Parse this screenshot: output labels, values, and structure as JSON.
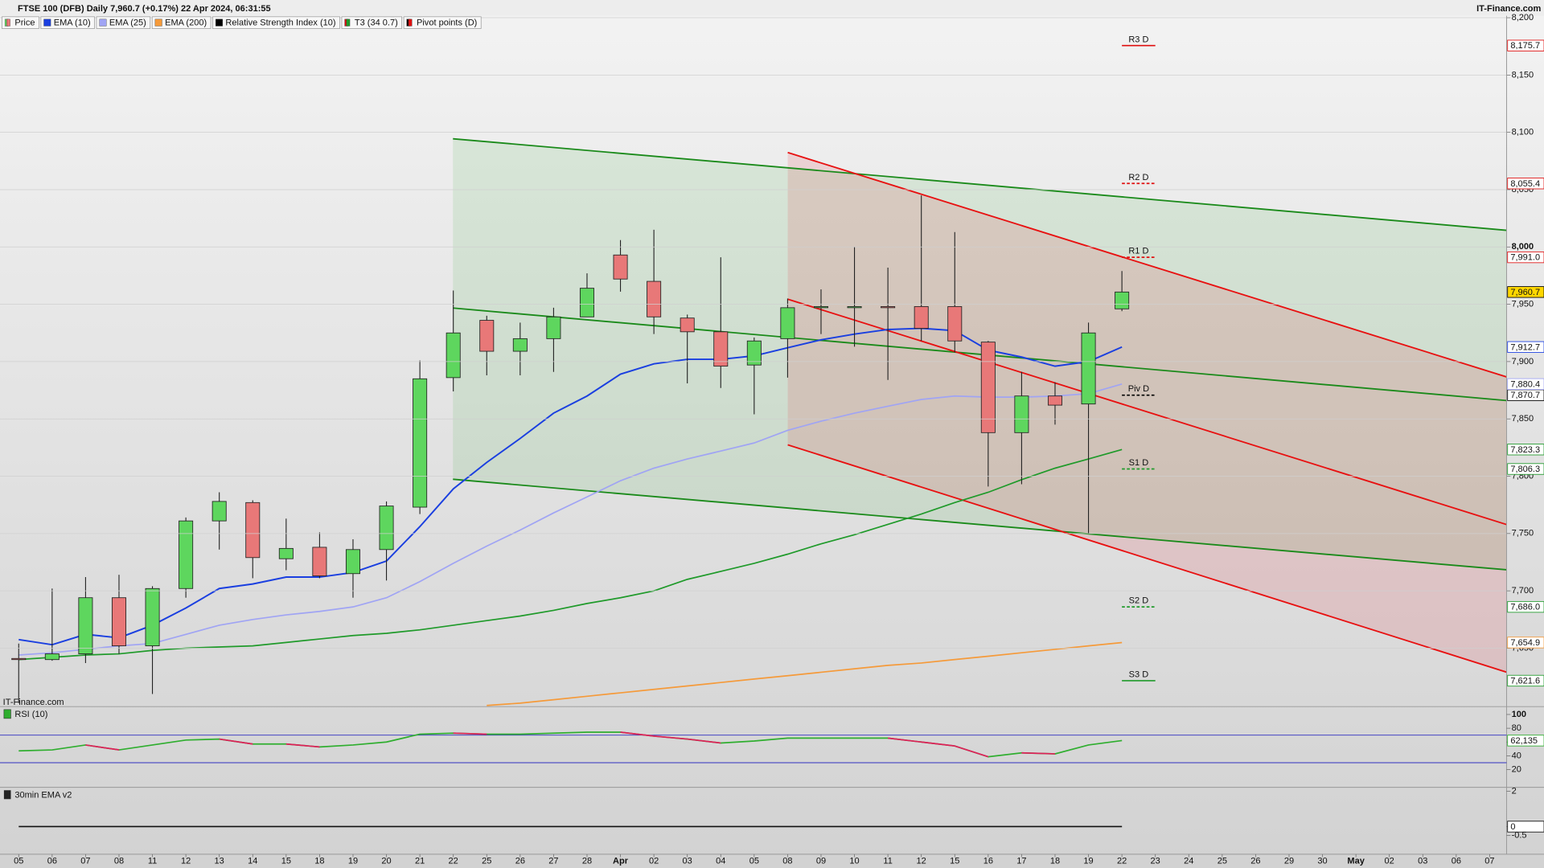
{
  "header": {
    "title": "FTSE 100 (DFB) Daily 7,960.7 (+0.17%) 22 Apr 2024, 06:31:55",
    "source": "IT-Finance.com"
  },
  "chart_data": [
    {
      "type": "candlestick",
      "price_name": "Price",
      "pivot_name": "Pivot points (D)",
      "pivot_color": "#000000",
      "watermark": "IT-Finance.com",
      "up_color": "#5ed65e",
      "down_color": "#e87878",
      "last_label": "7,960.7",
      "last_fill": "#ffd700",
      "categories": [
        "05",
        "06",
        "07",
        "08",
        "11",
        "12",
        "13",
        "14",
        "15",
        "18",
        "19",
        "20",
        "21",
        "22",
        "25",
        "26",
        "27",
        "28",
        "Apr",
        "02",
        "03",
        "04",
        "05",
        "08",
        "09",
        "10",
        "11",
        "12",
        "15",
        "16",
        "17",
        "18",
        "19",
        "22",
        "23",
        "24",
        "25",
        "26",
        "29",
        "30",
        "May",
        "02",
        "03",
        "06",
        "07"
      ],
      "open": [
        7641,
        7640,
        7645,
        7694,
        7652,
        7702,
        7761,
        7777,
        7728,
        7738,
        7715,
        7736,
        7773,
        7886,
        7936,
        7909,
        7920,
        7939,
        7993,
        7970,
        7938,
        7926,
        7897,
        7920,
        7947,
        7947,
        7948,
        7948,
        7948,
        7917,
        7838,
        7870,
        7863,
        7946,
        null,
        null,
        null,
        null,
        null,
        null,
        null,
        null,
        null,
        null,
        null
      ],
      "high": [
        7654,
        7702,
        7712,
        7714,
        7704,
        7764,
        7786,
        7779,
        7763,
        7751,
        7745,
        7778,
        7901,
        7962,
        7940,
        7934,
        7947,
        7977,
        8006,
        8015,
        7941,
        7991,
        7921,
        7955,
        7963,
        8000,
        7982,
        8045,
        8013,
        7918,
        7891,
        7882,
        7934,
        7979,
        null,
        null,
        null,
        null,
        null,
        null,
        null,
        null,
        null,
        null,
        null
      ],
      "low": [
        7602,
        7639,
        7637,
        7645,
        7610,
        7694,
        7736,
        7711,
        7718,
        7711,
        7694,
        7709,
        7767,
        7874,
        7888,
        7888,
        7891,
        7939,
        7961,
        7924,
        7881,
        7877,
        7854,
        7886,
        7924,
        7913,
        7884,
        7918,
        7908,
        7791,
        7793,
        7845,
        7750,
        7944,
        null,
        null,
        null,
        null,
        null,
        null,
        null,
        null,
        null,
        null,
        null
      ],
      "close": [
        7640,
        7645,
        7694,
        7652,
        7702,
        7761,
        7778,
        7729,
        7737,
        7713,
        7736,
        7774,
        7885,
        7925,
        7909,
        7920,
        7939,
        7964,
        7972,
        7939,
        7926,
        7896,
        7918,
        7947,
        7948,
        7948,
        7947,
        7929,
        7918,
        7838,
        7870,
        7862,
        7925,
        7960.7,
        null,
        null,
        null,
        null,
        null,
        null,
        null,
        null,
        null,
        null,
        null
      ],
      "series": [
        {
          "name": "EMA (10)",
          "color": "#1a3fe0",
          "last_label": "7,912.7",
          "values": [
            7657.5,
            7653,
            7662,
            7659,
            7670,
            7685,
            7702,
            7706,
            7712,
            7712,
            7716,
            7726,
            7756,
            7789,
            7812,
            7833,
            7855,
            7870,
            7889,
            7898,
            7902,
            7902,
            7905,
            7912,
            7919,
            7924,
            7928,
            7929,
            7927,
            7910,
            7904,
            7896,
            7900,
            7912.7,
            null,
            null,
            null,
            null,
            null,
            null,
            null,
            null,
            null,
            null,
            null
          ]
        },
        {
          "name": "EMA (25)",
          "color": "#a0a4f4",
          "last_label": "7,880.4",
          "values": [
            7644,
            7646,
            7649,
            7652,
            7654,
            7662,
            7670,
            7675,
            7679,
            7682,
            7686,
            7694,
            7708,
            7724,
            7739,
            7753,
            7768,
            7782,
            7796,
            7807,
            7815,
            7822,
            7829,
            7840,
            7848,
            7855,
            7861,
            7867,
            7870,
            7869,
            7869,
            7870,
            7872,
            7880.4,
            null,
            null,
            null,
            null,
            null,
            null,
            null,
            null,
            null,
            null,
            null
          ]
        },
        {
          "name": "EMA (200)",
          "color": "#f59a3a",
          "last_label": "7,654.9",
          "values": [
            null,
            null,
            null,
            null,
            null,
            null,
            null,
            null,
            null,
            null,
            null,
            null,
            null,
            null,
            7600,
            7602,
            7605,
            7608,
            7611,
            7614,
            7617,
            7620,
            7623,
            7626,
            7629,
            7632,
            7635,
            7637,
            7640,
            7643,
            7646,
            7649,
            7652,
            7654.9,
            null,
            null,
            null,
            null,
            null,
            null,
            null,
            null,
            null,
            null,
            null
          ]
        },
        {
          "name": "T3 (34 0.7)",
          "color": "#1f9a2a",
          "last_label": "7,823.3",
          "values": [
            7640,
            7642,
            7644,
            7645,
            7648,
            7650,
            7651,
            7652,
            7655,
            7658,
            7661,
            7663,
            7666,
            7670,
            7674,
            7678,
            7683,
            7689,
            7694,
            7700,
            7710,
            7717,
            7724,
            7732,
            7741,
            7749,
            7758,
            7767,
            7777,
            7786,
            7797,
            7807,
            7815,
            7823.3,
            null,
            null,
            null,
            null,
            null,
            null,
            null,
            null,
            null,
            null,
            null
          ]
        }
      ],
      "pivots": [
        {
          "name": "R3 D",
          "value": 8175.7,
          "label": "8,175.7",
          "color": "#e01010",
          "dashed": false
        },
        {
          "name": "R2 D",
          "value": 8055.4,
          "label": "8,055.4",
          "color": "#e01010",
          "dashed": true
        },
        {
          "name": "R1 D",
          "value": 7991.0,
          "label": "7,991.0",
          "color": "#e01010",
          "dashed": true
        },
        {
          "name": "Piv D",
          "value": 7870.7,
          "label": "7,870.7",
          "color": "#000000",
          "dashed": true
        },
        {
          "name": "S1 D",
          "value": 7806.3,
          "label": "7,806.3",
          "color": "#1f9a2a",
          "dashed": true
        },
        {
          "name": "S2 D",
          "value": 7686.0,
          "label": "7,686.0",
          "color": "#1f9a2a",
          "dashed": true
        },
        {
          "name": "S3 D",
          "value": 7621.6,
          "label": "7,621.6",
          "color": "#1f9a2a",
          "dashed": false
        }
      ],
      "ylim": [
        7599,
        8200
      ],
      "yticks": [
        {
          "value": 7650,
          "label": "7,650"
        },
        {
          "value": 7700,
          "label": "7,700"
        },
        {
          "value": 7750,
          "label": "7,750"
        },
        {
          "value": 7800,
          "label": "7,800"
        },
        {
          "value": 7850,
          "label": "7,850"
        },
        {
          "value": 7900,
          "label": "7,900"
        },
        {
          "value": 7950,
          "label": "7,950"
        },
        {
          "value": 8000,
          "label": "8,000"
        },
        {
          "value": 8050,
          "label": "8,050"
        },
        {
          "value": 8100,
          "label": "8,100"
        },
        {
          "value": 8150,
          "label": "8,150"
        },
        {
          "value": 8200,
          "label": "8,200"
        }
      ],
      "grid": true
    },
    {
      "type": "line",
      "name": "Relative Strength Index (10)",
      "title": "RSI (10)",
      "legend_color": "#000000",
      "series": [
        {
          "color": "#2fae2f",
          "down_color": "#e0205a",
          "last_label": "62,135",
          "values": [
            47.1,
            48.6,
            55.7,
            48.6,
            55.7,
            62.9,
            64.3,
            57.1,
            57.1,
            52.9,
            55.7,
            60,
            71.4,
            72.9,
            71.4,
            71.4,
            72.9,
            74.3,
            74.3,
            68.6,
            64.3,
            58.6,
            61.4,
            65.7,
            65.7,
            65.7,
            65.7,
            60,
            54.3,
            38.6,
            44.3,
            42.9,
            55.7,
            62.135,
            null,
            null,
            null,
            null,
            null,
            null,
            null,
            null,
            null,
            null,
            null
          ]
        }
      ],
      "bands": [
        70,
        30
      ],
      "band_color": "#3030c0",
      "ylim": [
        -5.7,
        111.4
      ],
      "yticks": [
        100,
        80,
        60,
        40,
        20
      ]
    },
    {
      "type": "line",
      "title": "30min EMA v2",
      "series": [
        {
          "color": "#111111",
          "last_label": "0",
          "values": [
            0,
            0,
            0,
            0,
            0,
            0,
            0,
            0,
            0,
            0,
            0,
            0,
            0,
            0,
            0,
            0,
            0,
            0,
            0,
            0,
            0,
            0,
            0,
            0,
            0,
            0,
            0,
            0,
            0,
            0,
            0,
            0,
            0,
            0,
            null,
            null,
            null,
            null,
            null,
            null,
            null,
            null,
            null,
            null,
            null
          ]
        }
      ],
      "ylim": [
        -1.56,
        2.22
      ],
      "yticks": [
        2,
        0,
        -0.5
      ]
    }
  ]
}
